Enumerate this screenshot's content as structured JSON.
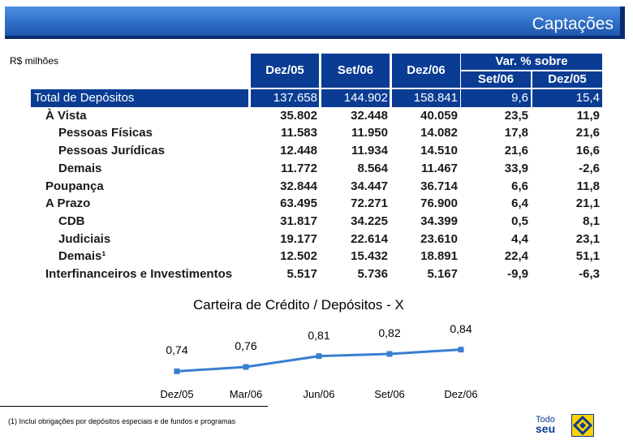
{
  "title": "Captações",
  "unit": "R$ milhões",
  "table": {
    "headers": [
      "Dez/05",
      "Set/06",
      "Dez/06"
    ],
    "var_header": "Var. % sobre",
    "var_sub": [
      "Set/06",
      "Dez/05"
    ],
    "rows": [
      {
        "label": "Total de Depósitos",
        "values": [
          "137.658",
          "144.902",
          "158.841",
          "9,6",
          "15,4"
        ]
      },
      {
        "label": "À Vista",
        "values": [
          "35.802",
          "32.448",
          "40.059",
          "23,5",
          "11,9"
        ]
      },
      {
        "label": "Pessoas Físicas",
        "values": [
          "11.583",
          "11.950",
          "14.082",
          "17,8",
          "21,6"
        ]
      },
      {
        "label": "Pessoas Jurídicas",
        "values": [
          "12.448",
          "11.934",
          "14.510",
          "21,6",
          "16,6"
        ]
      },
      {
        "label": "Demais",
        "values": [
          "11.772",
          "8.564",
          "11.467",
          "33,9",
          "-2,6"
        ]
      },
      {
        "label": "Poupança",
        "values": [
          "32.844",
          "34.447",
          "36.714",
          "6,6",
          "11,8"
        ]
      },
      {
        "label": "A Prazo",
        "values": [
          "63.495",
          "72.271",
          "76.900",
          "6,4",
          "21,1"
        ]
      },
      {
        "label": "CDB",
        "values": [
          "31.817",
          "34.225",
          "34.399",
          "0,5",
          "8,1"
        ]
      },
      {
        "label": "Judiciais",
        "values": [
          "19.177",
          "22.614",
          "23.610",
          "4,4",
          "23,1"
        ]
      },
      {
        "label": "Demais¹",
        "values": [
          "12.502",
          "15.432",
          "18.891",
          "22,4",
          "51,1"
        ]
      },
      {
        "label": "Interfinanceiros e Investimentos",
        "values": [
          "5.517",
          "5.736",
          "5.167",
          "-9,9",
          "-6,3"
        ]
      }
    ]
  },
  "chart_data": {
    "type": "line",
    "title": "Carteira de Crédito / Depósitos - X",
    "categories": [
      "Dez/05",
      "Mar/06",
      "Jun/06",
      "Set/06",
      "Dez/06"
    ],
    "values": [
      0.74,
      0.76,
      0.81,
      0.82,
      0.84
    ],
    "labels": [
      "0,74",
      "0,76",
      "0,81",
      "0,82",
      "0,84"
    ],
    "color": "#3a7fd0"
  },
  "footnote": "(1) Inclui obrigações por depósitos especiais e de fundos e programas",
  "logo": {
    "line1": "Todo",
    "line2": "seu"
  }
}
